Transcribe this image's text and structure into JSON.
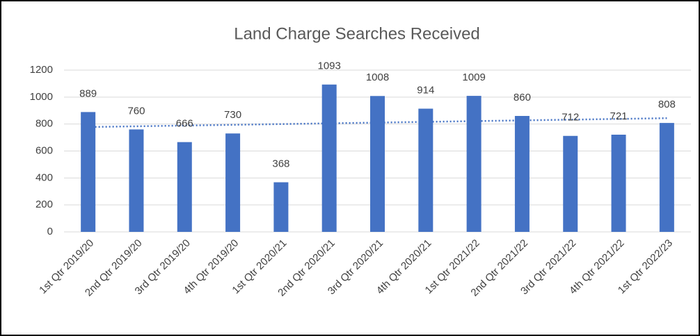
{
  "chart_data": {
    "type": "bar",
    "title": "Land Charge Searches Received",
    "categories": [
      "1st Qtr 2019/20",
      "2nd Qtr 2019/20",
      "3rd Qtr 2019/20",
      "4th Qtr 2019/20",
      "1st Qtr 2020/21",
      "2nd Qtr 2020/21",
      "3rd Qtr 2020/21",
      "4th Qtr 2020/21",
      "1st Qtr 2021/22",
      "2nd Qtr 2021/22",
      "3rd Qtr 2021/22",
      "4th Qtr 2021/22",
      "1st Qtr 2022/23"
    ],
    "values": [
      889,
      760,
      666,
      730,
      368,
      1093,
      1008,
      914,
      1009,
      860,
      712,
      721,
      808
    ],
    "color": "#4472c4",
    "ylim": [
      0,
      1200
    ],
    "yticks": [
      0,
      200,
      400,
      600,
      800,
      1000,
      1200
    ],
    "grid": true,
    "trendline": "linear",
    "data_labels": true
  }
}
